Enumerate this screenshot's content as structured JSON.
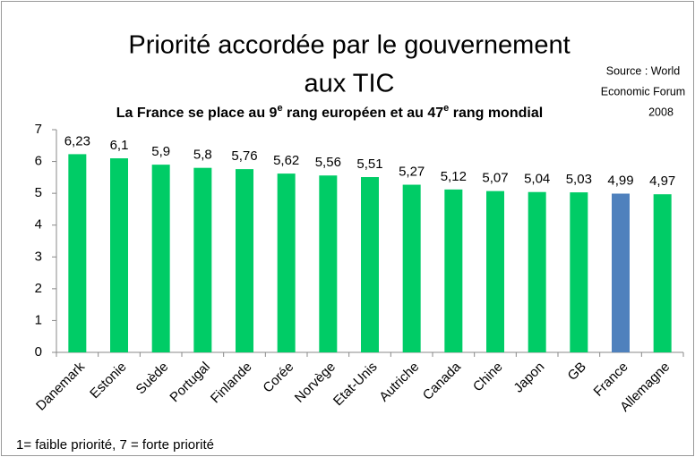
{
  "chart_data": {
    "type": "bar",
    "title": [
      "Priorité accordée par le gouvernement",
      "aux TIC"
    ],
    "subtitle": [
      "La France se place au 9",
      "e",
      " rang européen et au 47",
      "e",
      " rang mondial"
    ],
    "source": [
      "Source : World",
      "Economic Forum",
      "2008"
    ],
    "note": "1= faible priorité,  7 = forte priorité",
    "categories": [
      "Danemark",
      "Estonie",
      "Suède",
      "Portugal",
      "Finlande",
      "Corée",
      "Norvège",
      "Etat-Unis",
      "Autriche",
      "Canada",
      "Chine",
      "Japon",
      "GB",
      "France",
      "Allemagne"
    ],
    "values": [
      6.23,
      6.1,
      5.9,
      5.8,
      5.76,
      5.62,
      5.56,
      5.51,
      5.27,
      5.12,
      5.07,
      5.04,
      5.03,
      4.99,
      4.97
    ],
    "value_labels": [
      "6,23",
      "6,1",
      "5,9",
      "5,8",
      "5,76",
      "5,62",
      "5,56",
      "5,51",
      "5,27",
      "5,12",
      "5,07",
      "5,04",
      "5,03",
      "4,99",
      "4,97"
    ],
    "colors": [
      "#00cc66",
      "#00cc66",
      "#00cc66",
      "#00cc66",
      "#00cc66",
      "#00cc66",
      "#00cc66",
      "#00cc66",
      "#00cc66",
      "#00cc66",
      "#00cc66",
      "#00cc66",
      "#00cc66",
      "#4f81bd",
      "#00cc66"
    ],
    "ylim": [
      0,
      7
    ],
    "yticks": [
      0,
      1,
      2,
      3,
      4,
      5,
      6,
      7
    ],
    "grid": false
  }
}
